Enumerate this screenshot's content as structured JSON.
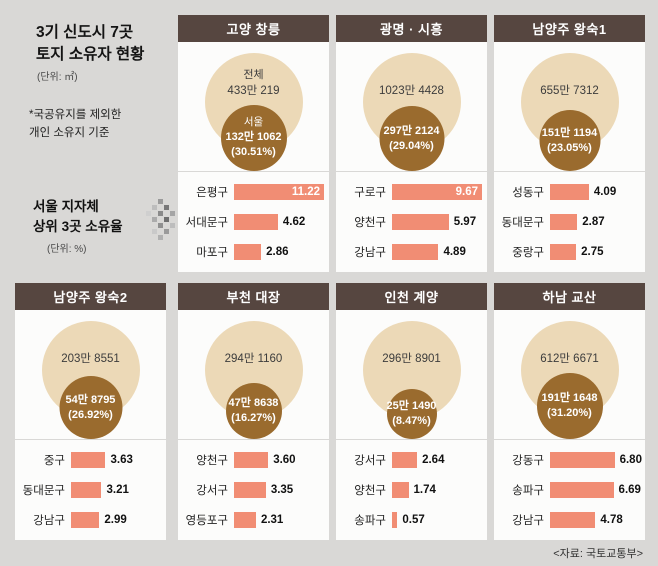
{
  "header": {
    "title": "3기 신도시 7곳\n토지 소유자 현황",
    "area_unit": "(단위: ㎡)",
    "note": "*국공유지를 제외한\n개인 소유지 기준",
    "legend": "서울 지자체\n상위 3곳 소유율",
    "legend_unit": "(단위: %)",
    "source": "<자료: 국토교통부>"
  },
  "colors": {
    "background": "#d9d8d6",
    "panel_header": "#564640",
    "outer_circle": "#ecd9b7",
    "inner_circle": "#9a6b2e",
    "bar": "#f18d74"
  },
  "chart_data": {
    "type": "bar",
    "title": "3기 신도시 7곳 토지 소유자 현황",
    "area_unit": "㎡",
    "bar_unit": "%",
    "legend": "서울 지자체 상위 3곳 소유율",
    "source": "국토교통부",
    "panels": [
      {
        "name": "고양 창릉",
        "total_label": "전체",
        "total": "433만 219",
        "seoul_label": "서울",
        "seoul": "132만 1062",
        "seoul_pct": 30.51,
        "seoul_pct_display": "(30.51%)",
        "bars": [
          {
            "label": "은평구",
            "value": 11.22,
            "display": "11.22"
          },
          {
            "label": "서대문구",
            "value": 4.62,
            "display": "4.62"
          },
          {
            "label": "마포구",
            "value": 2.86,
            "display": "2.86"
          }
        ]
      },
      {
        "name": "광명 · 시흥",
        "total": "1023만 4428",
        "seoul": "297만 2124",
        "seoul_pct": 29.04,
        "seoul_pct_display": "(29.04%)",
        "bars": [
          {
            "label": "구로구",
            "value": 9.67,
            "display": "9.67"
          },
          {
            "label": "양천구",
            "value": 5.97,
            "display": "5.97"
          },
          {
            "label": "강남구",
            "value": 4.89,
            "display": "4.89"
          }
        ]
      },
      {
        "name": "남양주 왕숙1",
        "total": "655만 7312",
        "seoul": "151만 1194",
        "seoul_pct": 23.05,
        "seoul_pct_display": "(23.05%)",
        "bars": [
          {
            "label": "성동구",
            "value": 4.09,
            "display": "4.09"
          },
          {
            "label": "동대문구",
            "value": 2.87,
            "display": "2.87"
          },
          {
            "label": "중랑구",
            "value": 2.75,
            "display": "2.75"
          }
        ]
      },
      {
        "name": "남양주 왕숙2",
        "total": "203만 8551",
        "seoul": "54만 8795",
        "seoul_pct": 26.92,
        "seoul_pct_display": "(26.92%)",
        "bars": [
          {
            "label": "중구",
            "value": 3.63,
            "display": "3.63"
          },
          {
            "label": "동대문구",
            "value": 3.21,
            "display": "3.21"
          },
          {
            "label": "강남구",
            "value": 2.99,
            "display": "2.99"
          }
        ]
      },
      {
        "name": "부천 대장",
        "total": "294만 1160",
        "seoul": "47만 8638",
        "seoul_pct": 16.27,
        "seoul_pct_display": "(16.27%)",
        "bars": [
          {
            "label": "양천구",
            "value": 3.6,
            "display": "3.60"
          },
          {
            "label": "강서구",
            "value": 3.35,
            "display": "3.35"
          },
          {
            "label": "영등포구",
            "value": 2.31,
            "display": "2.31"
          }
        ]
      },
      {
        "name": "인천 계양",
        "total": "296만 8901",
        "seoul": "25만 1490",
        "seoul_pct": 8.47,
        "seoul_pct_display": "(8.47%)",
        "bars": [
          {
            "label": "강서구",
            "value": 2.64,
            "display": "2.64"
          },
          {
            "label": "양천구",
            "value": 1.74,
            "display": "1.74"
          },
          {
            "label": "송파구",
            "value": 0.57,
            "display": "0.57"
          }
        ]
      },
      {
        "name": "하남 교산",
        "total": "612만 6671",
        "seoul": "191만 1648",
        "seoul_pct": 31.2,
        "seoul_pct_display": "(31.20%)",
        "bars": [
          {
            "label": "강동구",
            "value": 6.8,
            "display": "6.80"
          },
          {
            "label": "송파구",
            "value": 6.69,
            "display": "6.69"
          },
          {
            "label": "강남구",
            "value": 4.78,
            "display": "4.78"
          }
        ]
      }
    ]
  }
}
